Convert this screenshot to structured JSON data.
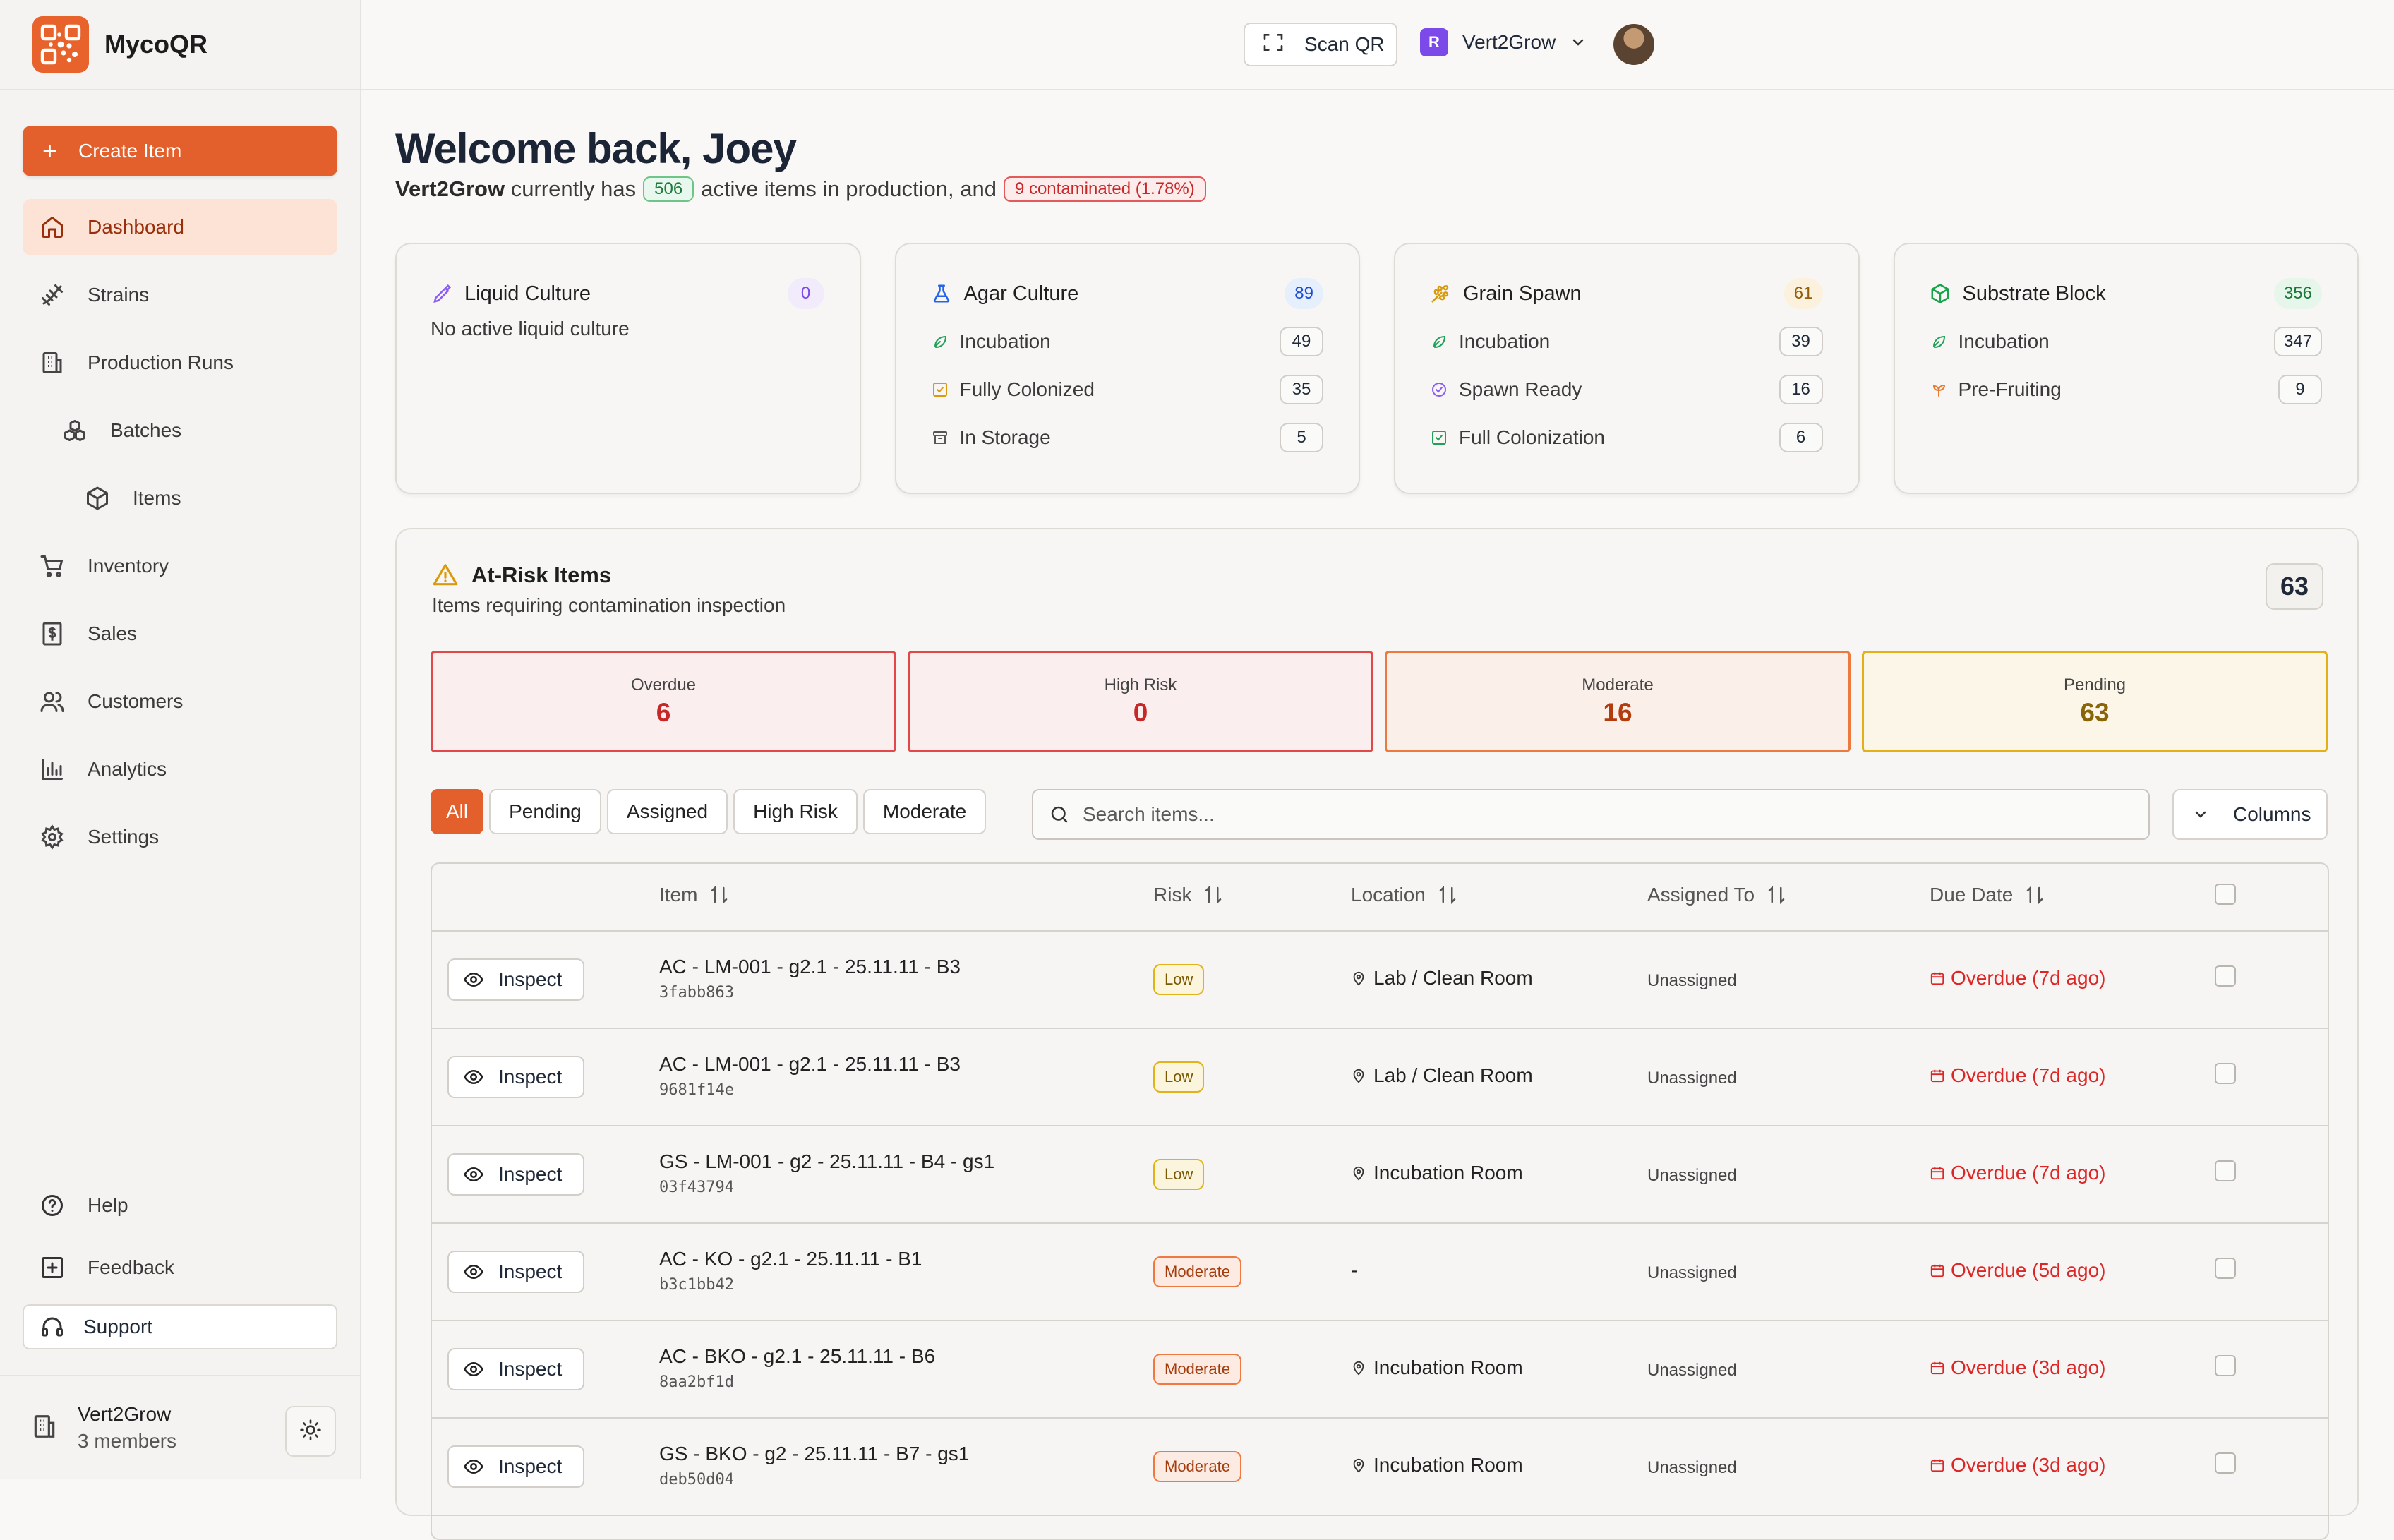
{
  "brand": {
    "name": "MycoQR",
    "color": "#e8622c"
  },
  "sidebar": {
    "create_label": "Create Item",
    "items": [
      {
        "label": "Dashboard",
        "icon": "home-icon",
        "active": true
      },
      {
        "label": "Strains",
        "icon": "dna-icon"
      },
      {
        "label": "Production Runs",
        "icon": "building-icon"
      },
      {
        "label": "Batches",
        "icon": "boxes-icon"
      },
      {
        "label": "Items",
        "icon": "package-icon"
      },
      {
        "label": "Inventory",
        "icon": "cart-icon"
      },
      {
        "label": "Sales",
        "icon": "dollar-receipt-icon"
      },
      {
        "label": "Customers",
        "icon": "users-icon"
      },
      {
        "label": "Analytics",
        "icon": "bar-chart-icon"
      },
      {
        "label": "Settings",
        "icon": "gear-icon"
      }
    ],
    "help_label": "Help",
    "feedback_label": "Feedback",
    "support_label": "Support",
    "org": {
      "name": "Vert2Grow",
      "members": "3 members"
    }
  },
  "topbar": {
    "scan_label": "Scan QR",
    "org_initial": "R",
    "org_name": "Vert2Grow"
  },
  "welcome": {
    "title": "Welcome back, Joey",
    "org": "Vert2Grow",
    "text_a": "currently has",
    "active_count": "506",
    "text_b": "active items in production, and",
    "contaminated": "9 contaminated (1.78%)"
  },
  "cards": [
    {
      "title": "Liquid Culture",
      "count": "0",
      "icon": "pipette-icon",
      "badge_bg": "#f1ebfb",
      "badge_fg": "#7c4ae8",
      "empty": "No active liquid culture",
      "rows": []
    },
    {
      "title": "Agar Culture",
      "count": "89",
      "icon": "flask-icon",
      "badge_bg": "#e6effc",
      "badge_fg": "#1d4ed8",
      "rows": [
        {
          "label": "Incubation",
          "count": "49",
          "icon": "leaf-icon"
        },
        {
          "label": "Fully Colonized",
          "count": "35",
          "icon": "check-square-icon"
        },
        {
          "label": "In Storage",
          "count": "5",
          "icon": "archive-icon"
        }
      ]
    },
    {
      "title": "Grain Spawn",
      "count": "61",
      "icon": "wheat-icon",
      "badge_bg": "#fbf1dc",
      "badge_fg": "#92600a",
      "rows": [
        {
          "label": "Incubation",
          "count": "39",
          "icon": "leaf-icon"
        },
        {
          "label": "Spawn Ready",
          "count": "16",
          "icon": "check-circle-icon"
        },
        {
          "label": "Full Colonization",
          "count": "6",
          "icon": "check-square-icon"
        }
      ]
    },
    {
      "title": "Substrate Block",
      "count": "356",
      "icon": "cube-icon",
      "badge_bg": "#e6f6ea",
      "badge_fg": "#1b7a3a",
      "rows": [
        {
          "label": "Incubation",
          "count": "347",
          "icon": "leaf-icon"
        },
        {
          "label": "Pre-Fruiting",
          "count": "9",
          "icon": "sprout-icon"
        }
      ]
    }
  ],
  "risk": {
    "title": "At-Risk Items",
    "subtitle": "Items requiring contamination inspection",
    "total": "63",
    "stats": [
      {
        "label": "Overdue",
        "value": "6"
      },
      {
        "label": "High Risk",
        "value": "0"
      },
      {
        "label": "Moderate",
        "value": "16"
      },
      {
        "label": "Pending",
        "value": "63"
      }
    ],
    "filters": [
      "All",
      "Pending",
      "Assigned",
      "High Risk",
      "Moderate"
    ],
    "search_placeholder": "Search items...",
    "columns_label": "Columns",
    "headers": {
      "item": "Item",
      "risk": "Risk",
      "location": "Location",
      "assigned": "Assigned To",
      "due": "Due Date"
    },
    "inspect_label": "Inspect",
    "rows": [
      {
        "name": "AC - LM-001 - g2.1 - 25.11.11 - B3",
        "code": "3fabb863",
        "risk": "Low",
        "location": "Lab / Clean Room",
        "assigned": "Unassigned",
        "due": "Overdue (7d ago)"
      },
      {
        "name": "AC - LM-001 - g2.1 - 25.11.11 - B3",
        "code": "9681f14e",
        "risk": "Low",
        "location": "Lab / Clean Room",
        "assigned": "Unassigned",
        "due": "Overdue (7d ago)"
      },
      {
        "name": "GS - LM-001 - g2 - 25.11.11 - B4 - gs1",
        "code": "03f43794",
        "risk": "Low",
        "location": "Incubation Room",
        "assigned": "Unassigned",
        "due": "Overdue (7d ago)"
      },
      {
        "name": "AC - KO - g2.1 - 25.11.11 - B1",
        "code": "b3c1bb42",
        "risk": "Moderate",
        "location": "-",
        "assigned": "Unassigned",
        "due": "Overdue (5d ago)"
      },
      {
        "name": "AC - BKO - g2.1 - 25.11.11 - B6",
        "code": "8aa2bf1d",
        "risk": "Moderate",
        "location": "Incubation Room",
        "assigned": "Unassigned",
        "due": "Overdue (3d ago)"
      },
      {
        "name": "GS - BKO - g2 - 25.11.11 - B7 - gs1",
        "code": "deb50d04",
        "risk": "Moderate",
        "location": "Incubation Room",
        "assigned": "Unassigned",
        "due": "Overdue (3d ago)"
      }
    ]
  }
}
